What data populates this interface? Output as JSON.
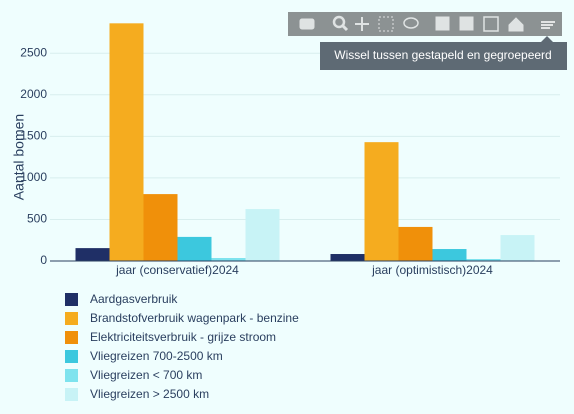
{
  "chart_data": {
    "type": "bar",
    "y_label": "Aantal bomen",
    "categories": [
      "jaar  (conservatief)2024",
      "jaar (optimistisch)2024"
    ],
    "series": [
      {
        "name": "Aardgasverbruik",
        "color": "#1f2f66",
        "values": [
          155,
          84
        ]
      },
      {
        "name": "Brandstofverbruik wagenpark - benzine",
        "color": "#f5ac1f",
        "values": [
          2860,
          1430
        ]
      },
      {
        "name": "Elektriciteitsverbruik - grijze stroom",
        "color": "#f0900a",
        "values": [
          805,
          410
        ]
      },
      {
        "name": "Vliegreizen 700-2500 km",
        "color": "#3cc8de",
        "values": [
          290,
          144
        ]
      },
      {
        "name": "Vliegreizen < 700 km",
        "color": "#7ee3ee",
        "values": [
          36,
          24
        ]
      },
      {
        "name": "Vliegreizen > 2500 km",
        "color": "#c8f3f6",
        "values": [
          625,
          312
        ]
      }
    ],
    "ylim": [
      0,
      2900
    ],
    "yticks": [
      0,
      500,
      1000,
      1500,
      2000,
      2500
    ],
    "grid": true
  },
  "tooltip": "Wissel tussen gestapeld en gegroepeerd"
}
